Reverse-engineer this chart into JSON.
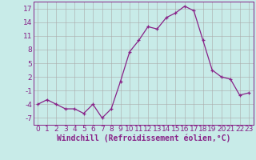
{
  "x": [
    0,
    1,
    2,
    3,
    4,
    5,
    6,
    7,
    8,
    9,
    10,
    11,
    12,
    13,
    14,
    15,
    16,
    17,
    18,
    19,
    20,
    21,
    22,
    23
  ],
  "y": [
    -4,
    -3,
    -4,
    -5,
    -5,
    -6,
    -4,
    -7,
    -5,
    1,
    7.5,
    10,
    13,
    12.5,
    15,
    16,
    17.5,
    16.5,
    10,
    3.5,
    2,
    1.5,
    -2,
    -1.5
  ],
  "line_color": "#882288",
  "marker": "+",
  "bg_color": "#c8ebe8",
  "grid_color": "#aaaaaa",
  "xlabel": "Windchill (Refroidissement éolien,°C)",
  "yticks": [
    -7,
    -4,
    -1,
    2,
    5,
    8,
    11,
    14,
    17
  ],
  "xtick_labels": [
    "0",
    "1",
    "2",
    "3",
    "4",
    "5",
    "6",
    "7",
    "8",
    "9",
    "10",
    "11",
    "12",
    "13",
    "14",
    "15",
    "16",
    "17",
    "18",
    "19",
    "20",
    "21",
    "22",
    "23"
  ],
  "ylim": [
    -8.5,
    18.5
  ],
  "xlim": [
    -0.5,
    23.5
  ],
  "xlabel_fontsize": 7,
  "tick_fontsize": 6.5,
  "axis_color": "#882288"
}
